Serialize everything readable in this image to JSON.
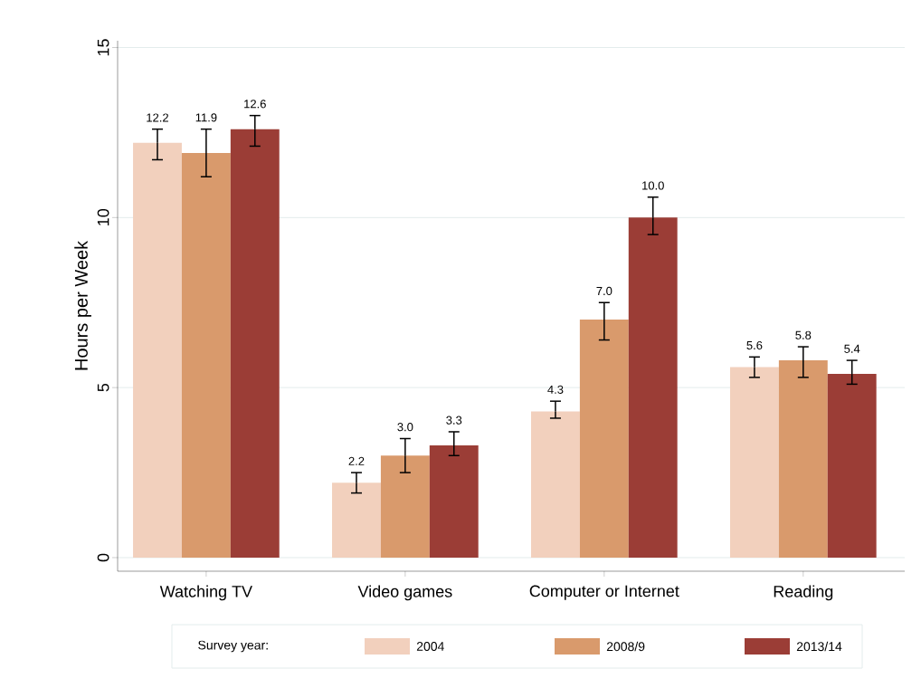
{
  "chart_data": {
    "type": "bar",
    "ylabel": "Hours per Week",
    "legend_title": "Survey year:",
    "categories": [
      "Watching TV",
      "Video games",
      "Computer or Internet",
      "Reading"
    ],
    "series": [
      {
        "name": "2004",
        "color": "#f2d0bd",
        "values": [
          12.2,
          2.2,
          4.3,
          5.6
        ],
        "value_labels": [
          "12.2",
          "2.2",
          "4.3",
          "5.6"
        ],
        "errors": [
          [
            11.7,
            12.6
          ],
          [
            1.9,
            2.5
          ],
          [
            4.1,
            4.6
          ],
          [
            5.3,
            5.9
          ]
        ]
      },
      {
        "name": "2008/9",
        "color": "#d99a6c",
        "values": [
          11.9,
          3.0,
          7.0,
          5.8
        ],
        "value_labels": [
          "11.9",
          "3.0",
          "7.0",
          "5.8"
        ],
        "errors": [
          [
            11.2,
            12.6
          ],
          [
            2.5,
            3.5
          ],
          [
            6.4,
            7.5
          ],
          [
            5.3,
            6.2
          ]
        ]
      },
      {
        "name": "2013/14",
        "color": "#9b3d36",
        "values": [
          12.6,
          3.3,
          10.0,
          5.4
        ],
        "value_labels": [
          "12.6",
          "3.3",
          "10.0",
          "5.4"
        ],
        "errors": [
          [
            12.1,
            13.0
          ],
          [
            3.0,
            3.7
          ],
          [
            9.5,
            10.6
          ],
          [
            5.1,
            5.8
          ]
        ]
      }
    ],
    "ylim": [
      -0.4,
      15.2
    ],
    "yticks": [
      0,
      5,
      10,
      15
    ],
    "grid": "y",
    "legend": "bottom"
  }
}
